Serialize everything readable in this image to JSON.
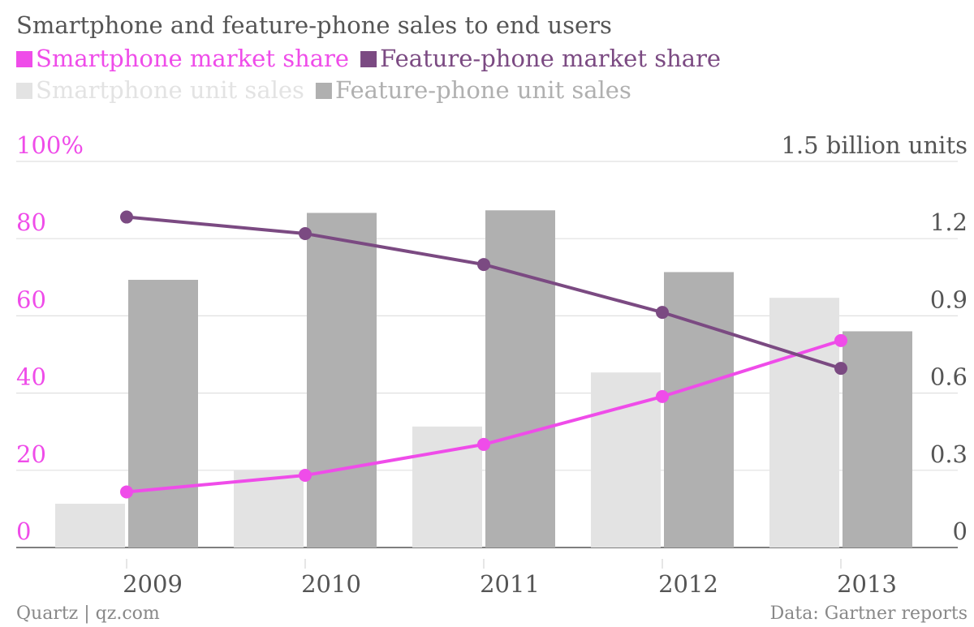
{
  "chart_data": {
    "type": "bar",
    "title": "Smartphone and feature-phone sales to end users",
    "categories": [
      "2009",
      "2010",
      "2011",
      "2012",
      "2013"
    ],
    "series": [
      {
        "name": "Smartphone unit sales",
        "kind": "bar",
        "axis": "right",
        "color": "#e3e3e3",
        "values": [
          0.17,
          0.3,
          0.47,
          0.68,
          0.97
        ]
      },
      {
        "name": "Feature-phone unit sales",
        "kind": "bar",
        "axis": "right",
        "color": "#b0b0b0",
        "values": [
          1.04,
          1.3,
          1.31,
          1.07,
          0.84
        ]
      },
      {
        "name": "Smartphone market share",
        "kind": "line",
        "axis": "left",
        "color": "#ef4ce9",
        "values": [
          14.4,
          18.7,
          26.7,
          39.1,
          53.6
        ]
      },
      {
        "name": "Feature-phone market share",
        "kind": "line",
        "axis": "left",
        "color": "#7b4a82",
        "values": [
          85.6,
          81.3,
          73.3,
          60.9,
          46.4
        ]
      }
    ],
    "y_left": {
      "range": [
        0,
        100
      ],
      "ticks": [
        0,
        20,
        40,
        60,
        80,
        100
      ],
      "tick_labels": [
        "0",
        "20",
        "40",
        "60",
        "80",
        "100%"
      ]
    },
    "y_right": {
      "range": [
        0,
        1.5
      ],
      "ticks": [
        0,
        0.3,
        0.6,
        0.9,
        1.2,
        1.5
      ],
      "tick_labels": [
        "0",
        "0.3",
        "0.6",
        "0.9",
        "1.2",
        "1.5 billion units"
      ]
    },
    "grid": true,
    "legend_position": "top-left"
  },
  "footer": {
    "source_left": "Quartz | qz.com",
    "source_right": "Data: Gartner reports"
  },
  "colors": {
    "title": "#555555",
    "axis_text": "#555555",
    "left_axis_text": "#ef4ce9",
    "gridline": "#e0e0e0",
    "footer": "#888888"
  }
}
